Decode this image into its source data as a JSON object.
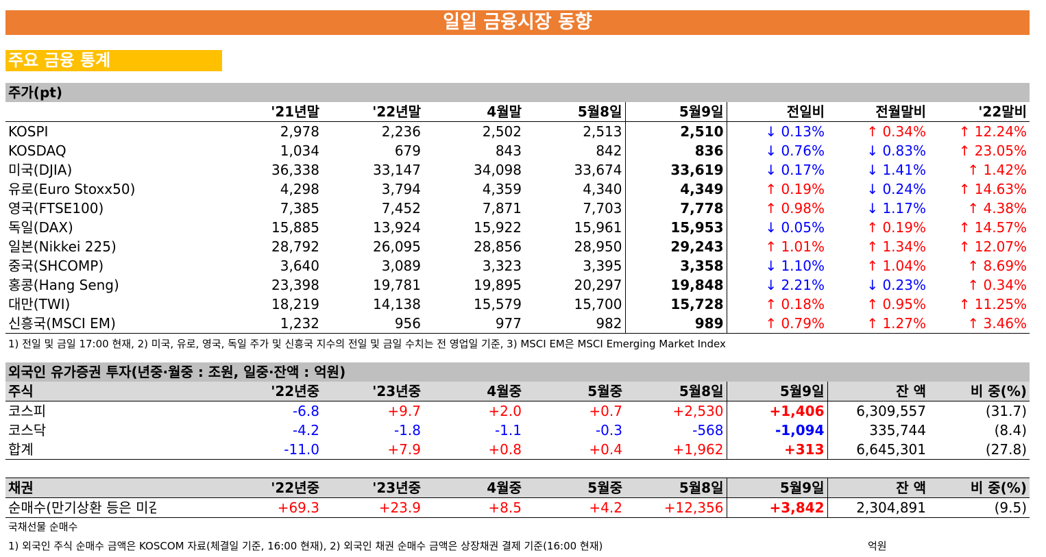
{
  "title": "일일 금융시장 동향",
  "subtitle": "주요 금융 통계",
  "stocks": {
    "section": "주가(pt)",
    "headers": [
      "",
      "'21년말",
      "'22년말",
      "4월말",
      "5월8일",
      "5월9일",
      "전일비",
      "전월말비",
      "'22말비"
    ],
    "rows": [
      {
        "name": "KOSPI",
        "v": [
          "2,978",
          "2,236",
          "2,502",
          "2,513",
          "2,510"
        ],
        "c": [
          [
            "↓ 0.13%",
            "dn"
          ],
          [
            "↑ 0.34%",
            "up"
          ],
          [
            "↑ 12.24%",
            "up"
          ]
        ]
      },
      {
        "name": "KOSDAQ",
        "v": [
          "1,034",
          "679",
          "843",
          "842",
          "836"
        ],
        "c": [
          [
            "↓ 0.76%",
            "dn"
          ],
          [
            "↓ 0.83%",
            "dn"
          ],
          [
            "↑ 23.05%",
            "up"
          ]
        ]
      },
      {
        "name": "미국(DJIA)",
        "v": [
          "36,338",
          "33,147",
          "34,098",
          "33,674",
          "33,619"
        ],
        "c": [
          [
            "↓ 0.17%",
            "dn"
          ],
          [
            "↓ 1.41%",
            "dn"
          ],
          [
            "↑ 1.42%",
            "up"
          ]
        ]
      },
      {
        "name": "유로(Euro Stoxx50)",
        "v": [
          "4,298",
          "3,794",
          "4,359",
          "4,340",
          "4,349"
        ],
        "c": [
          [
            "↑ 0.19%",
            "up"
          ],
          [
            "↓ 0.24%",
            "dn"
          ],
          [
            "↑ 14.63%",
            "up"
          ]
        ]
      },
      {
        "name": "영국(FTSE100)",
        "v": [
          "7,385",
          "7,452",
          "7,871",
          "7,703",
          "7,778"
        ],
        "c": [
          [
            "↑ 0.98%",
            "up"
          ],
          [
            "↓ 1.17%",
            "dn"
          ],
          [
            "↑ 4.38%",
            "up"
          ]
        ]
      },
      {
        "name": "독일(DAX)",
        "v": [
          "15,885",
          "13,924",
          "15,922",
          "15,961",
          "15,953"
        ],
        "c": [
          [
            "↓ 0.05%",
            "dn"
          ],
          [
            "↑ 0.19%",
            "up"
          ],
          [
            "↑ 14.57%",
            "up"
          ]
        ]
      },
      {
        "name": "일본(Nikkei 225)",
        "v": [
          "28,792",
          "26,095",
          "28,856",
          "28,950",
          "29,243"
        ],
        "c": [
          [
            "↑ 1.01%",
            "up"
          ],
          [
            "↑ 1.34%",
            "up"
          ],
          [
            "↑ 12.07%",
            "up"
          ]
        ]
      },
      {
        "name": "중국(SHCOMP)",
        "v": [
          "3,640",
          "3,089",
          "3,323",
          "3,395",
          "3,358"
        ],
        "c": [
          [
            "↓ 1.10%",
            "dn"
          ],
          [
            "↑ 1.04%",
            "up"
          ],
          [
            "↑ 8.69%",
            "up"
          ]
        ]
      },
      {
        "name": "홍콩(Hang Seng)",
        "v": [
          "23,398",
          "19,781",
          "19,895",
          "20,297",
          "19,848"
        ],
        "c": [
          [
            "↓ 2.21%",
            "dn"
          ],
          [
            "↓ 0.23%",
            "dn"
          ],
          [
            "↑ 0.34%",
            "up"
          ]
        ]
      },
      {
        "name": "대만(TWI)",
        "v": [
          "18,219",
          "14,138",
          "15,579",
          "15,700",
          "15,728"
        ],
        "c": [
          [
            "↑ 0.18%",
            "up"
          ],
          [
            "↑ 0.95%",
            "up"
          ],
          [
            "↑ 11.25%",
            "up"
          ]
        ]
      },
      {
        "name": "신흥국(MSCI EM)",
        "v": [
          "1,232",
          "956",
          "977",
          "982",
          "989"
        ],
        "c": [
          [
            "↑ 0.79%",
            "up"
          ],
          [
            "↑ 1.27%",
            "up"
          ],
          [
            "↑ 3.46%",
            "up"
          ]
        ]
      }
    ],
    "note": "1) 전일 및 금일 17:00 현재,  2) 미국, 유로, 영국, 독일 주가 및 신흥국 지수의 전일 및 금일 수치는 전 영업일 기준, 3) MSCI EM은 MSCI Emerging Market Index"
  },
  "foreign": {
    "section": "외국인 유가증권 투자(년중·월중 : 조원, 일중·잔액 : 억원)",
    "equity_headers": [
      "주식",
      "'22년중",
      "'23년중",
      "4월중",
      "5월중",
      "5월8일",
      "5월9일",
      "잔 액",
      "비 중(%)"
    ],
    "equity_rows": [
      {
        "name": "코스피",
        "v": [
          [
            "-6.8",
            "dn"
          ],
          [
            "+9.7",
            "up"
          ],
          [
            "+2.0",
            "up"
          ],
          [
            "+0.7",
            "up"
          ],
          [
            "+2,530",
            "up"
          ],
          [
            "+1,406",
            "up"
          ]
        ],
        "bal": "6,309,557",
        "share": "(31.7)"
      },
      {
        "name": "코스닥",
        "v": [
          [
            "-4.2",
            "dn"
          ],
          [
            "-1.8",
            "dn"
          ],
          [
            "-1.1",
            "dn"
          ],
          [
            "-0.3",
            "dn"
          ],
          [
            "-568",
            "dn"
          ],
          [
            "-1,094",
            "dn"
          ]
        ],
        "bal": "335,744",
        "share": "(8.4)"
      },
      {
        "name": "합계",
        "v": [
          [
            "-11.0",
            "dn"
          ],
          [
            "+7.9",
            "up"
          ],
          [
            "+0.8",
            "up"
          ],
          [
            "+0.4",
            "up"
          ],
          [
            "+1,962",
            "up"
          ],
          [
            "+313",
            "up"
          ]
        ],
        "bal": "6,645,301",
        "share": "(27.8)"
      }
    ],
    "bond_headers": [
      "채권",
      "'22년중",
      "'23년중",
      "4월중",
      "5월중",
      "5월8일",
      "5월9일",
      "잔 액",
      "비 중(%)"
    ],
    "bond_rows": [
      {
        "name": "순매수(만기상환 등은 미감안)",
        "v": [
          [
            "+69.3",
            "up"
          ],
          [
            "+23.9",
            "up"
          ],
          [
            "+8.5",
            "up"
          ],
          [
            "+4.2",
            "up"
          ],
          [
            "+12,356",
            "up"
          ],
          [
            "+3,842",
            "up"
          ]
        ],
        "bal": "2,304,891",
        "share": "(9.5)"
      }
    ],
    "note_futures": "국채선물 순매수",
    "note": "1) 외국인 주식 순매수 금액은 KOSCOM 자료(체결일 기준, 16:00 현재),  2) 외국인 채권 순매수 금액은 상장채권 결제 기준(16:00 현재)",
    "unit": "억원"
  }
}
